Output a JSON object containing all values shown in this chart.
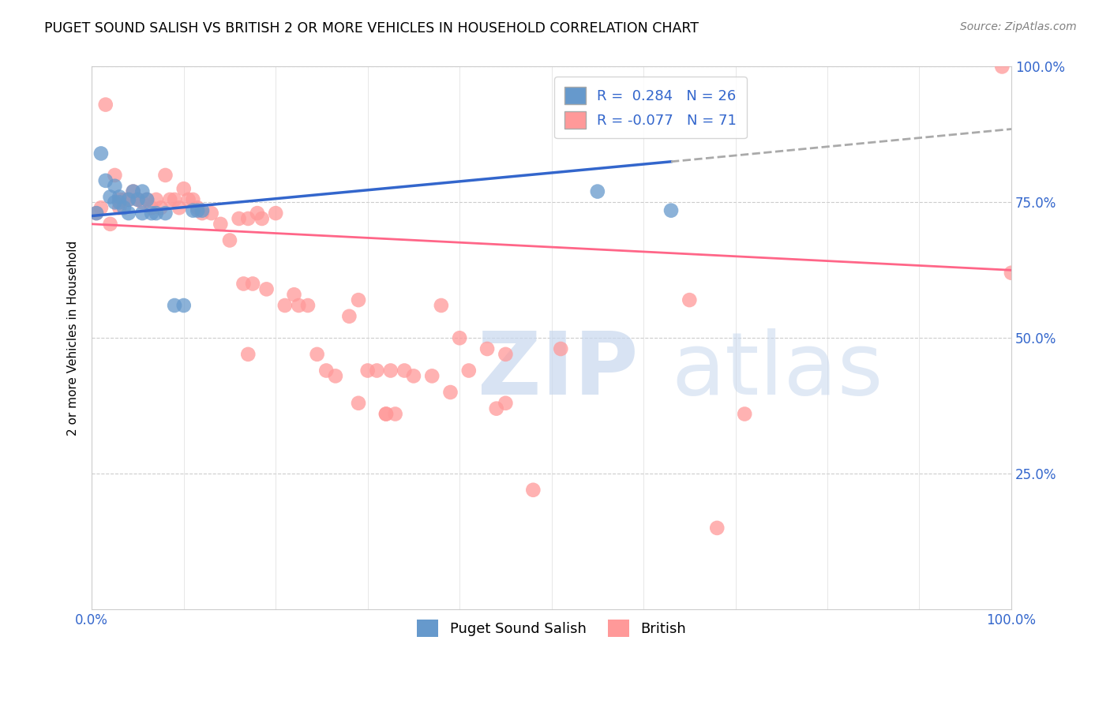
{
  "title": "PUGET SOUND SALISH VS BRITISH 2 OR MORE VEHICLES IN HOUSEHOLD CORRELATION CHART",
  "source": "Source: ZipAtlas.com",
  "ylabel": "2 or more Vehicles in Household",
  "xlabel": "",
  "xlim": [
    0,
    1
  ],
  "ylim": [
    0,
    1
  ],
  "xtick_labels": [
    "0.0%",
    "100.0%"
  ],
  "ytick_labels": [
    "0.0%",
    "25.0%",
    "50.0%",
    "75.0%",
    "100.0%"
  ],
  "ytick_values": [
    0,
    0.25,
    0.5,
    0.75,
    1.0
  ],
  "blue_R": 0.284,
  "blue_N": 26,
  "pink_R": -0.077,
  "pink_N": 71,
  "legend_label_blue": "Puget Sound Salish",
  "legend_label_pink": "British",
  "blue_color": "#6699CC",
  "pink_color": "#FF9999",
  "blue_line_color": "#3366CC",
  "pink_line_color": "#FF6688",
  "blue_line_x0": 0.0,
  "blue_line_y0": 0.725,
  "blue_line_x1": 0.63,
  "blue_line_y1": 0.825,
  "blue_line_dash_x0": 0.63,
  "blue_line_dash_y0": 0.825,
  "blue_line_dash_x1": 1.0,
  "blue_line_dash_y1": 0.885,
  "pink_line_x0": 0.0,
  "pink_line_y0": 0.71,
  "pink_line_x1": 1.0,
  "pink_line_y1": 0.625,
  "blue_points_x": [
    0.005,
    0.01,
    0.015,
    0.02,
    0.025,
    0.025,
    0.03,
    0.03,
    0.035,
    0.04,
    0.04,
    0.045,
    0.05,
    0.055,
    0.055,
    0.06,
    0.065,
    0.07,
    0.08,
    0.09,
    0.1,
    0.11,
    0.115,
    0.12,
    0.55,
    0.63
  ],
  "blue_points_y": [
    0.73,
    0.84,
    0.79,
    0.76,
    0.78,
    0.75,
    0.76,
    0.75,
    0.74,
    0.755,
    0.73,
    0.77,
    0.755,
    0.73,
    0.77,
    0.755,
    0.73,
    0.73,
    0.73,
    0.56,
    0.56,
    0.735,
    0.735,
    0.735,
    0.77,
    0.735
  ],
  "pink_points_x": [
    0.005,
    0.01,
    0.015,
    0.02,
    0.025,
    0.03,
    0.03,
    0.035,
    0.04,
    0.045,
    0.05,
    0.055,
    0.06,
    0.065,
    0.07,
    0.075,
    0.08,
    0.085,
    0.09,
    0.095,
    0.1,
    0.105,
    0.11,
    0.115,
    0.12,
    0.13,
    0.14,
    0.15,
    0.16,
    0.165,
    0.17,
    0.175,
    0.18,
    0.185,
    0.19,
    0.2,
    0.21,
    0.22,
    0.225,
    0.235,
    0.245,
    0.255,
    0.265,
    0.28,
    0.29,
    0.3,
    0.31,
    0.32,
    0.325,
    0.34,
    0.35,
    0.37,
    0.38,
    0.4,
    0.41,
    0.43,
    0.45,
    0.48,
    0.17,
    0.29,
    0.32,
    0.33,
    0.39,
    0.51,
    0.65,
    0.68,
    0.71,
    0.99,
    1.0,
    0.44,
    0.45
  ],
  "pink_points_y": [
    0.73,
    0.74,
    0.93,
    0.71,
    0.8,
    0.755,
    0.74,
    0.755,
    0.755,
    0.77,
    0.755,
    0.75,
    0.755,
    0.74,
    0.755,
    0.74,
    0.8,
    0.755,
    0.755,
    0.74,
    0.775,
    0.755,
    0.755,
    0.74,
    0.73,
    0.73,
    0.71,
    0.68,
    0.72,
    0.6,
    0.72,
    0.6,
    0.73,
    0.72,
    0.59,
    0.73,
    0.56,
    0.58,
    0.56,
    0.56,
    0.47,
    0.44,
    0.43,
    0.54,
    0.57,
    0.44,
    0.44,
    0.36,
    0.44,
    0.44,
    0.43,
    0.43,
    0.56,
    0.5,
    0.44,
    0.48,
    0.47,
    0.22,
    0.47,
    0.38,
    0.36,
    0.36,
    0.4,
    0.48,
    0.57,
    0.15,
    0.36,
    1.0,
    0.62,
    0.37,
    0.38
  ]
}
